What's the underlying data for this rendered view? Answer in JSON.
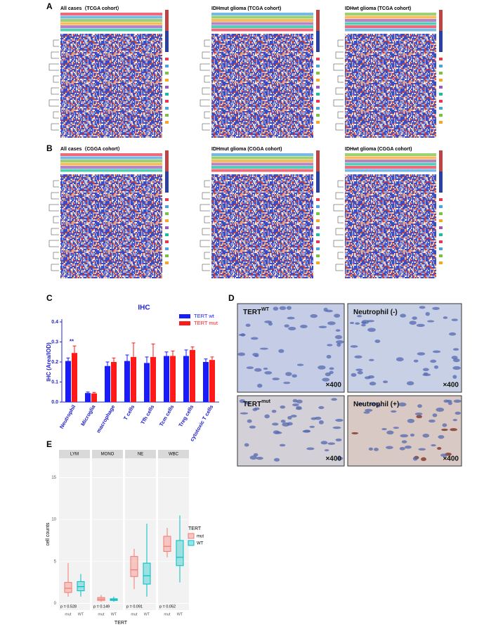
{
  "panel_labels": [
    "A",
    "B",
    "C",
    "D",
    "E"
  ],
  "heatmaps": {
    "A": [
      "All cases（TCGA cohort）",
      "IDHmut glioma (TCGA cohort)",
      "IDHwt glioma (TCGA cohort)"
    ],
    "B": [
      "All cases（CGGA cohort）",
      "IDHmut glioma (CGGA cohort)",
      "IDHwt glioma (CGGA cohort)"
    ]
  },
  "micrographs": [
    {
      "label": "TERT",
      "sup": "WT",
      "magnification": "×400"
    },
    {
      "label": "Neutrophil (-)",
      "magnification": "×400"
    },
    {
      "label": "TERT",
      "sup": "mut",
      "magnification": "×400"
    },
    {
      "label": "Neutrophil (+)",
      "magnification": "×400"
    }
  ],
  "chart_data": [
    {
      "type": "bar",
      "title": "IHC",
      "y_label": "IHC (Area/IOD)",
      "categories": [
        "Neutrophil",
        "Microglia",
        "macrophage",
        "T cells",
        "Tfh cells",
        "Tcm cells",
        "Treg cells",
        "cytotoxic T cells"
      ],
      "series": [
        {
          "name": "TERT wt",
          "color": "#1a1aff",
          "values": [
            0.205,
            0.045,
            0.18,
            0.205,
            0.195,
            0.23,
            0.23,
            0.2
          ],
          "errors": [
            0.015,
            0.005,
            0.02,
            0.03,
            0.03,
            0.02,
            0.03,
            0.015
          ]
        },
        {
          "name": "TERT mut",
          "color": "#ff1a1a",
          "values": [
            0.245,
            0.043,
            0.2,
            0.225,
            0.225,
            0.23,
            0.26,
            0.21
          ],
          "errors": [
            0.035,
            0.005,
            0.02,
            0.07,
            0.065,
            0.025,
            0.015,
            0.015
          ]
        }
      ],
      "annotation": "**",
      "ylim": [
        0,
        0.4
      ],
      "yticks": [
        {
          "value": 0,
          "label": "0.0"
        },
        0.1,
        0.2,
        0.3,
        0.4
      ]
    },
    {
      "type": "box",
      "y_label": "cell counts",
      "x_label": "TERT",
      "legend_title": "TERT",
      "facets": [
        "LYM",
        "MONO",
        "NE",
        "WBC"
      ],
      "p_values": [
        "p = 0.528",
        "p = 0.149",
        "p = 0.091",
        "p = 0.052"
      ],
      "series": [
        {
          "name": "mut",
          "color": "#f8766d",
          "min": [
            0.8,
            0.2,
            1.7,
            5.5
          ],
          "q1": [
            1.3,
            0.35,
            3.2,
            6.2
          ],
          "median": [
            1.8,
            0.5,
            4.0,
            6.8
          ],
          "q3": [
            2.5,
            0.7,
            5.6,
            8.0
          ],
          "max": [
            4.8,
            1.0,
            6.5,
            9.0
          ]
        },
        {
          "name": "WT",
          "color": "#00bfc4",
          "min": [
            0.8,
            0.2,
            0.8,
            2.5
          ],
          "q1": [
            1.5,
            0.35,
            2.3,
            4.5
          ],
          "median": [
            2.0,
            0.45,
            3.3,
            5.5
          ],
          "q3": [
            2.6,
            0.55,
            4.8,
            7.5
          ],
          "max": [
            3.5,
            0.8,
            9.5,
            10.5
          ]
        }
      ],
      "ylim": [
        -0.8,
        17.3
      ],
      "yticks": [
        0,
        5,
        10,
        15
      ]
    }
  ]
}
